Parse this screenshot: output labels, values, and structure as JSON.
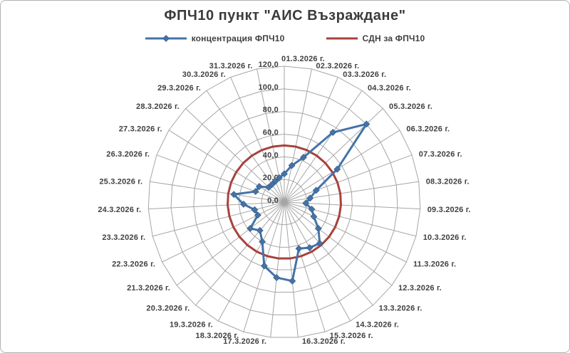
{
  "frame": {
    "background": "#ffffff",
    "border_color": "#b3b3b3"
  },
  "chart_data": {
    "type": "radar",
    "title": "ФПЧ10 пункт \"АИС Възраждане\"",
    "categories": [
      "01.3.2026 г.",
      "02.3.2026 г.",
      "03.3.2026 г.",
      "04.3.2026 г.",
      "05.3.2026 г.",
      "06.3.2026 г.",
      "07.3.2026 г.",
      "08.3.2026 г.",
      "09.3.2026 г.",
      "10.3.2026 г.",
      "11.3.2026 г.",
      "12.3.2026 г.",
      "13.3.2026 г.",
      "14.3.2026 г.",
      "15.3.2026 г.",
      "16.3.2026 г.",
      "17.3.2026 г.",
      "18.3.2026 г.",
      "19.3.2026 г.",
      "20.3.2026 г.",
      "21.3.2026 г.",
      "22.3.2026 г.",
      "23.3.2026 г.",
      "24.3.2026 г.",
      "25.3.2026 г.",
      "26.3.2026 г.",
      "27.3.2026 г.",
      "28.3.2026 г.",
      "29.3.2026 г.",
      "30.3.2026 г.",
      "31.3.2026 г."
    ],
    "series": [
      {
        "name": "концентрация ФПЧ10",
        "color": "#4473a8",
        "marker": "diamond",
        "values": [
          25,
          33,
          43,
          75,
          100,
          55,
          30,
          23,
          19,
          25,
          29,
          38,
          48,
          46,
          43,
          70,
          67,
          59,
          40,
          33,
          38,
          26,
          27,
          36,
          45,
          27,
          26,
          19,
          19,
          20,
          22
        ]
      },
      {
        "name": "СДН за ФПЧ10",
        "color": "#a7423d",
        "marker": "none",
        "constant_value": 50
      }
    ],
    "radial_axis": {
      "min": 0,
      "max": 120,
      "step": 20,
      "tick_labels": [
        "0,0",
        "20,0",
        "40,0",
        "60,0",
        "80,0",
        "100,0",
        "120,0"
      ]
    },
    "legend_position": "top",
    "grid": true,
    "grid_color": "#a6a6a6",
    "text_color": "#404040"
  }
}
